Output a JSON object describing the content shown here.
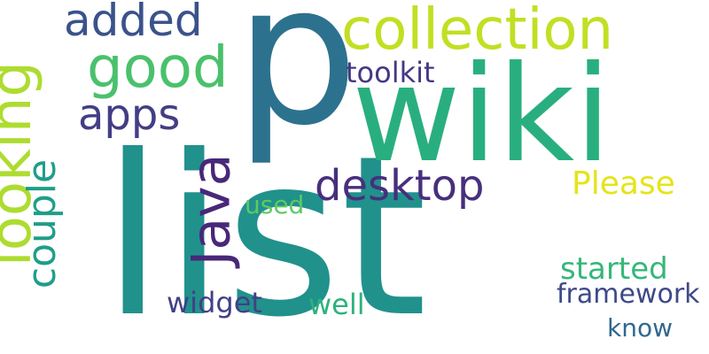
{
  "words": {
    "list": {
      "text": "list",
      "color": "#21918c"
    },
    "p": {
      "text": "p",
      "color": "#2c728e"
    },
    "wiki": {
      "text": "wiki",
      "color": "#29af7f"
    },
    "collection": {
      "text": "collection",
      "color": "#c2df23"
    },
    "looking": {
      "text": "looking",
      "color": "#addc30"
    },
    "good": {
      "text": "good",
      "color": "#4ac16d"
    },
    "added": {
      "text": "added",
      "color": "#3b528b"
    },
    "apps": {
      "text": "apps",
      "color": "#433e85"
    },
    "java": {
      "text": "Java",
      "color": "#482878"
    },
    "couple": {
      "text": "couple",
      "color": "#1f9e89"
    },
    "desktop": {
      "text": "desktop",
      "color": "#472f7d"
    },
    "toolkit": {
      "text": "toolkit",
      "color": "#443983"
    },
    "please": {
      "text": "Please",
      "color": "#e5e419"
    },
    "used": {
      "text": "used",
      "color": "#5ec962"
    },
    "widget": {
      "text": "widget",
      "color": "#424086"
    },
    "well": {
      "text": "well",
      "color": "#2db27d"
    },
    "started": {
      "text": "started",
      "color": "#35b779"
    },
    "framework": {
      "text": "framework",
      "color": "#3e4989"
    },
    "know": {
      "text": "know",
      "color": "#31688e"
    }
  }
}
